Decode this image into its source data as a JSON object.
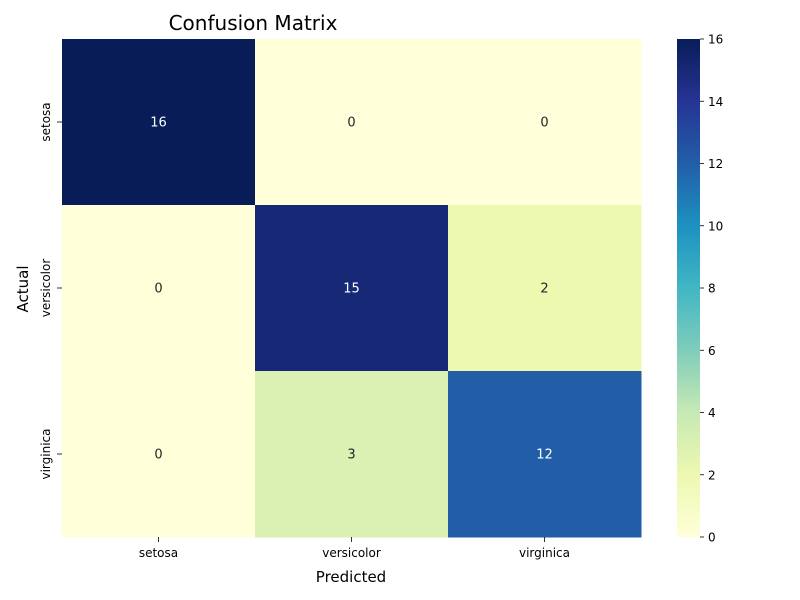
{
  "chart_data": {
    "type": "heatmap",
    "title": "Confusion Matrix",
    "xlabel": "Predicted",
    "ylabel": "Actual",
    "x_categories": [
      "setosa",
      "versicolor",
      "virginica"
    ],
    "y_categories": [
      "setosa",
      "versicolor",
      "virginica"
    ],
    "values": [
      [
        16,
        0,
        0
      ],
      [
        0,
        15,
        2
      ],
      [
        0,
        3,
        12
      ]
    ],
    "colorbar": {
      "min": 0,
      "max": 16,
      "ticks": [
        0,
        2,
        4,
        6,
        8,
        10,
        12,
        14,
        16
      ],
      "colormap": "YlGnBu"
    },
    "annotations": true
  }
}
